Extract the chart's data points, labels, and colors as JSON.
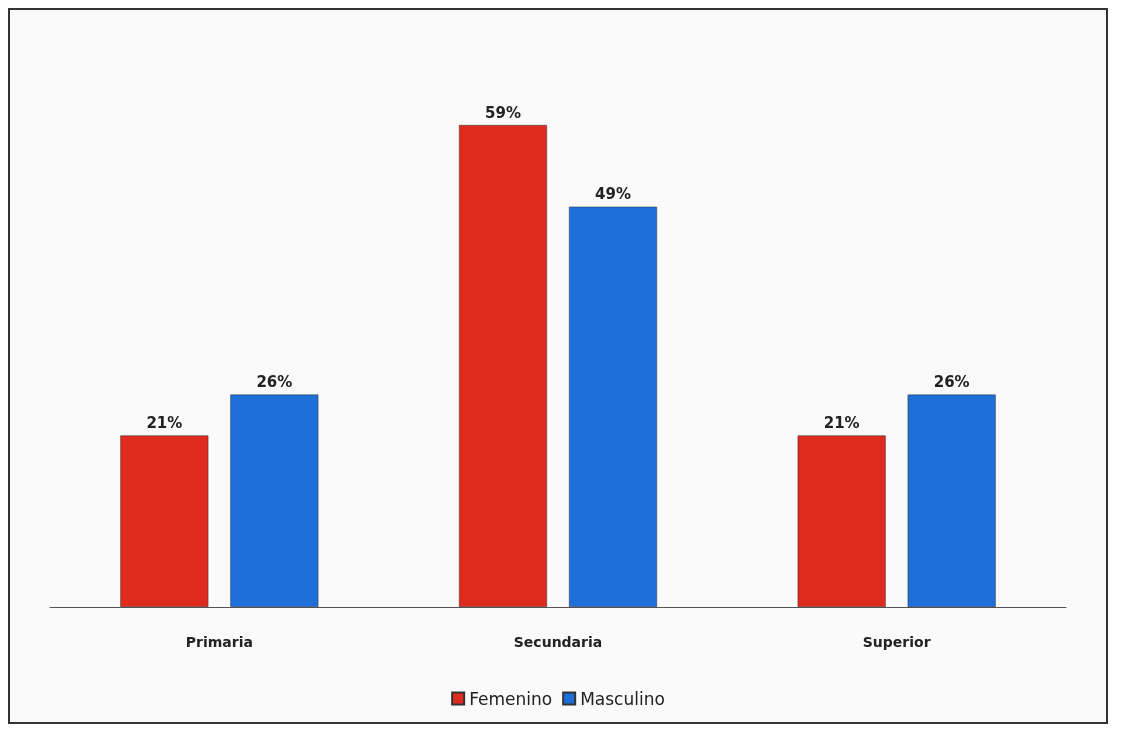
{
  "chart_data": {
    "type": "bar",
    "categories": [
      "Primaria",
      "Secundaria",
      "Superior"
    ],
    "series": [
      {
        "name": "Femenino",
        "color": "#de2a1f",
        "values": [
          21,
          59,
          21
        ],
        "value_labels": [
          "21%",
          "59%",
          "21%"
        ]
      },
      {
        "name": "Masculino",
        "color": "#1f6fd8",
        "values": [
          26,
          49,
          26
        ],
        "value_labels": [
          "26%",
          "49%",
          "26%"
        ]
      }
    ],
    "legend": "bottom",
    "grid": false
  }
}
